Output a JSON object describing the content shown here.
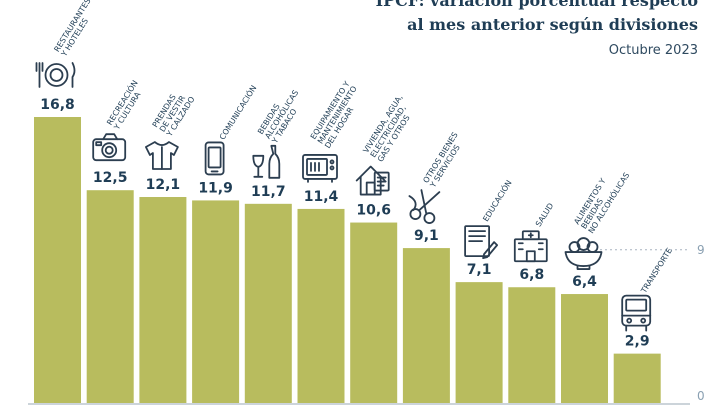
{
  "colors": {
    "bar": "#b8bc5e",
    "value_text": "#1f3d55",
    "label_text": "#1f3d55",
    "icon": "#2c3e50",
    "axis": "#8aa0b2",
    "background": "#ffffff"
  },
  "chart_data": {
    "type": "bar",
    "title_line1": "IPCF: variación porcentual respecto",
    "title_line2": "al mes anterior según divisiones",
    "subtitle": "Octubre 2023",
    "categories": [
      "RESTAURANTES Y HOTELES",
      "RECREACIÓN Y CULTURA",
      "PRENDAS DE VESTIR Y CALZADO",
      "COMUNICACIÓN",
      "BEBIDAS ALCOHÓLICAS Y TABACO",
      "EQUIPAMIENTO Y MANTENIMIENTO DEL HOGAR",
      "VIVIENDA, AGUA, ELECTRICIDAD, GAS Y OTROS",
      "OTROS BIENES Y SERVICIOS",
      "EDUCACIÓN",
      "SALUD",
      "ALIMENTOS Y BEBIDAS NO ALCOHÓLICAS",
      "TRANSPORTE"
    ],
    "label_lines": [
      [
        "RESTAURANTES",
        "Y HOTELES"
      ],
      [
        "RECREACIÓN",
        "Y CULTURA"
      ],
      [
        "PRENDAS",
        "DE VESTIR",
        "Y CALZADO"
      ],
      [
        "COMUNICACIÓN"
      ],
      [
        "BEBIDAS",
        "ALCOHÓLICAS",
        "Y TABACO"
      ],
      [
        "EQUIPAMIENTO Y",
        "MANTENIMIENTO",
        "DEL HOGAR"
      ],
      [
        "VIVIENDA, AGUA,",
        "ELECTRICIDAD,",
        "GAS Y OTROS"
      ],
      [
        "OTROS BIENES",
        "Y SERVICIOS"
      ],
      [
        "EDUCACIÓN"
      ],
      [
        "SALUD"
      ],
      [
        "ALIMENTOS Y",
        "BEBIDAS",
        "NO ALCOHÓLICAS"
      ],
      [
        "TRANSPORTE"
      ]
    ],
    "values": [
      16.8,
      12.5,
      12.1,
      11.9,
      11.7,
      11.4,
      10.6,
      9.1,
      7.1,
      6.8,
      6.4,
      2.9
    ],
    "value_labels": [
      "16,8",
      "12,5",
      "12,1",
      "11,9",
      "11,7",
      "11,4",
      "10,6",
      "9,1",
      "7,1",
      "6,8",
      "6,4",
      "2,9"
    ],
    "icons": [
      "plate-cutlery-icon",
      "camera-icon",
      "shirt-icon",
      "phone-icon",
      "bottle-glass-icon",
      "microwave-icon",
      "house-document-icon",
      "scissors-icon",
      "book-pencil-icon",
      "hospital-icon",
      "food-bowl-icon",
      "bus-icon"
    ],
    "y_ticks": [
      0,
      9
    ],
    "y_tick_labels": [
      "0",
      "9"
    ],
    "ylim": [
      0,
      16.8
    ]
  }
}
